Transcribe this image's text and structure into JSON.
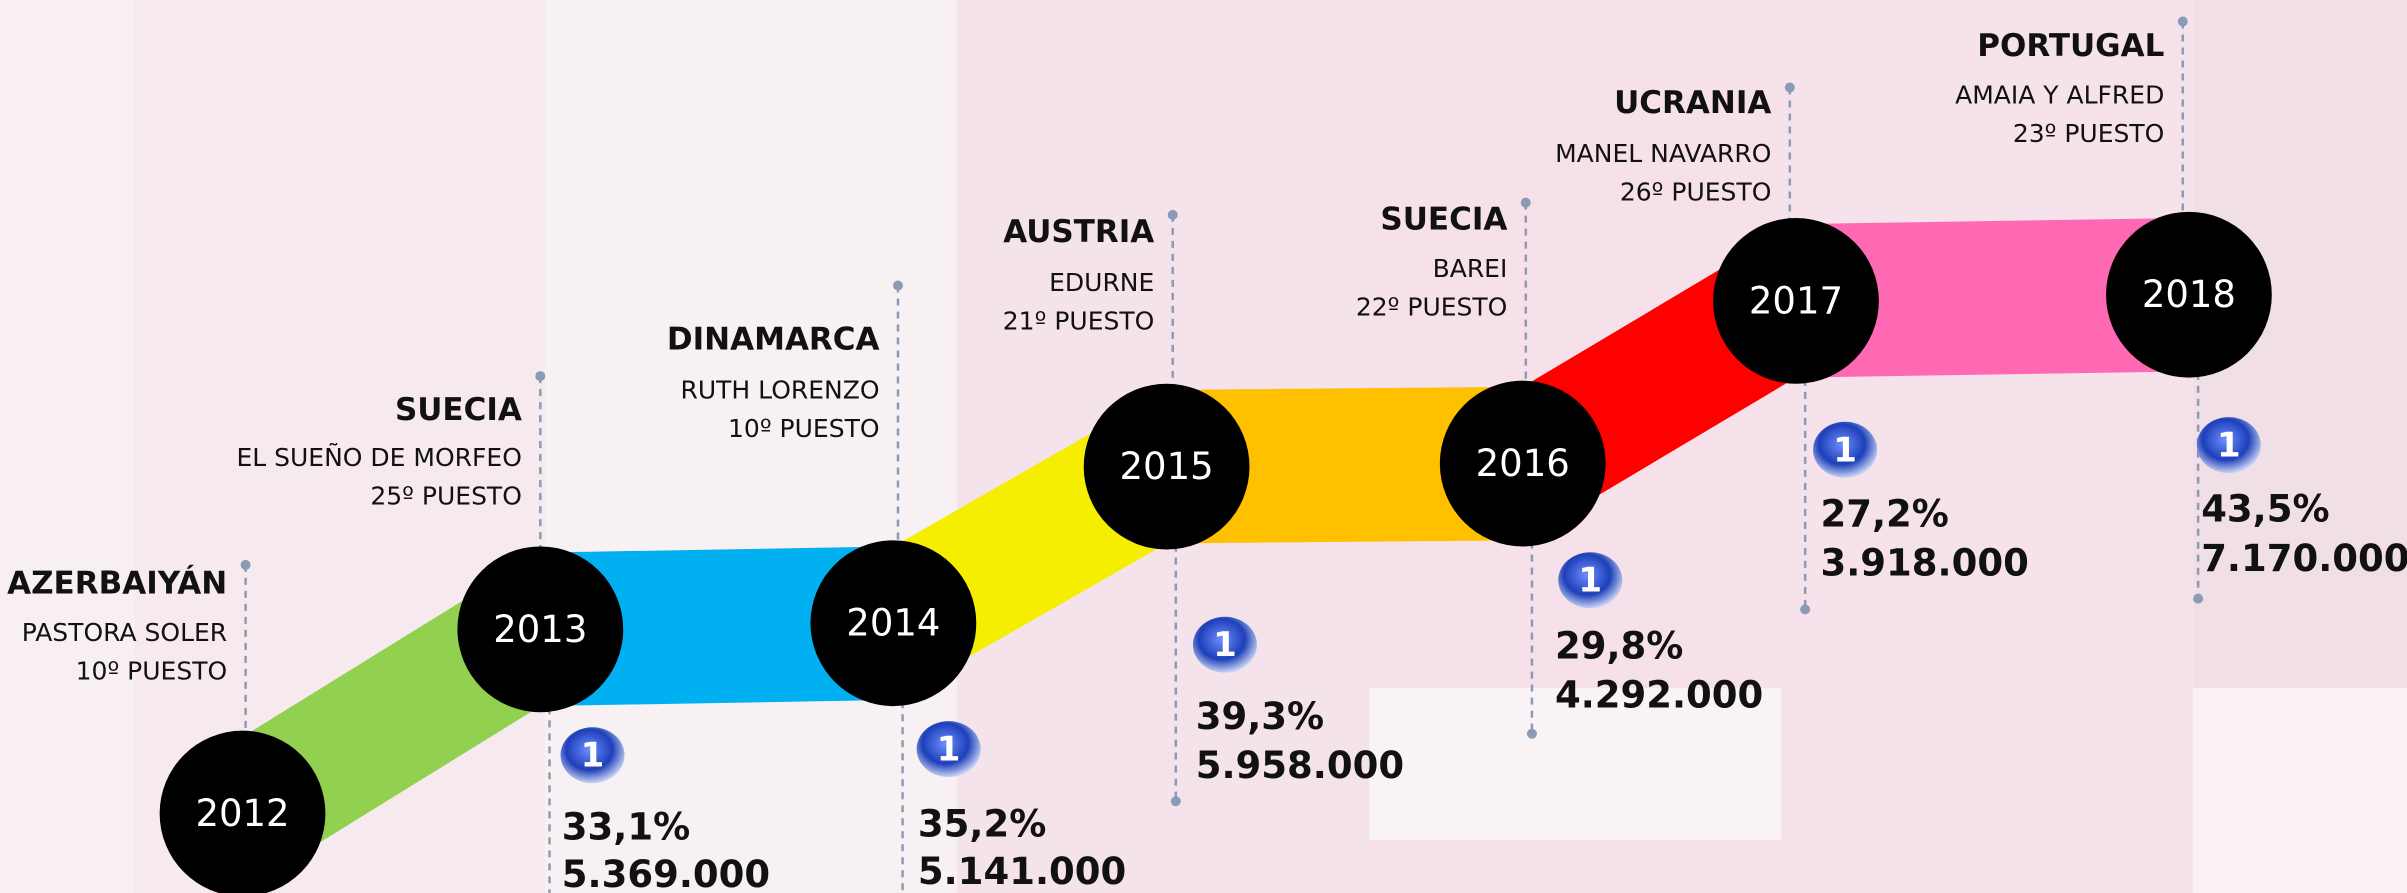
{
  "timeline": {
    "channel_logo": "1",
    "items": [
      {
        "year": "2012",
        "country": "AZERBAIYÁN",
        "artist": "PASTORA SOLER",
        "place": "10º PUESTO"
      },
      {
        "year": "2013",
        "country": "SUECIA",
        "artist": "EL SUEÑO DE MORFEO",
        "place": "25º PUESTO",
        "share": "33,1%",
        "audience": "5.369.000"
      },
      {
        "year": "2014",
        "country": "DINAMARCA",
        "artist": "RUTH LORENZO",
        "place": "10º PUESTO",
        "share": "35,2%",
        "audience": "5.141.000"
      },
      {
        "year": "2015",
        "country": "AUSTRIA",
        "artist": "EDURNE",
        "place": "21º PUESTO",
        "share": "39,3%",
        "audience": "5.958.000"
      },
      {
        "year": "2016",
        "country": "SUECIA",
        "artist": "BAREI",
        "place": "22º PUESTO",
        "share": "29,8%",
        "audience": "4.292.000"
      },
      {
        "year": "2017",
        "country": "UCRANIA",
        "artist": "MANEL NAVARRO",
        "place": "26º PUESTO",
        "share": "27,2%",
        "audience": "3.918.000"
      },
      {
        "year": "2018",
        "country": "PORTUGAL",
        "artist": "AMAIA Y ALFRED",
        "place": "23º PUESTO",
        "share": "43,5%",
        "audience": "7.170.000"
      }
    ]
  }
}
